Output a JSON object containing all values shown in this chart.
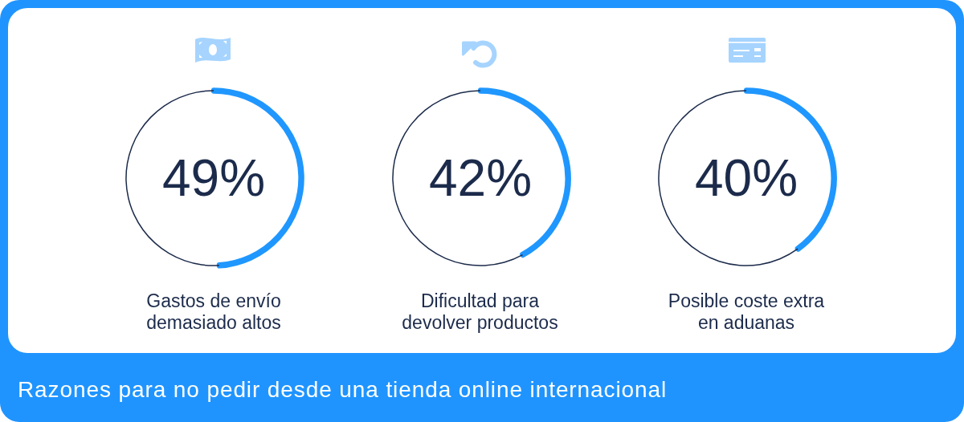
{
  "chart_data": [
    {
      "type": "donut",
      "title": "Gastos de envío demasiado altos",
      "categories": [
        null,
        null
      ],
      "values": [
        49,
        51
      ],
      "colors": [
        "#1f97ff",
        "#1c2b4b"
      ],
      "value_labels": [
        "49%",
        null
      ],
      "annotations": [
        "Razones para no pedir desde una tienda online internacional"
      ]
    },
    {
      "type": "donut",
      "title": "Dificultad para devolver productos",
      "categories": [
        null,
        null
      ],
      "values": [
        42,
        58
      ],
      "colors": [
        "#1f97ff",
        "#1c2b4b"
      ],
      "value_labels": [
        "42%",
        null
      ]
    },
    {
      "type": "donut",
      "title": "Posible coste extra en aduanas",
      "categories": [
        null,
        null
      ],
      "values": [
        40,
        60
      ],
      "colors": [
        "#1f97ff",
        "#1c2b4b"
      ],
      "value_labels": [
        "40%",
        null
      ]
    }
  ]
}
